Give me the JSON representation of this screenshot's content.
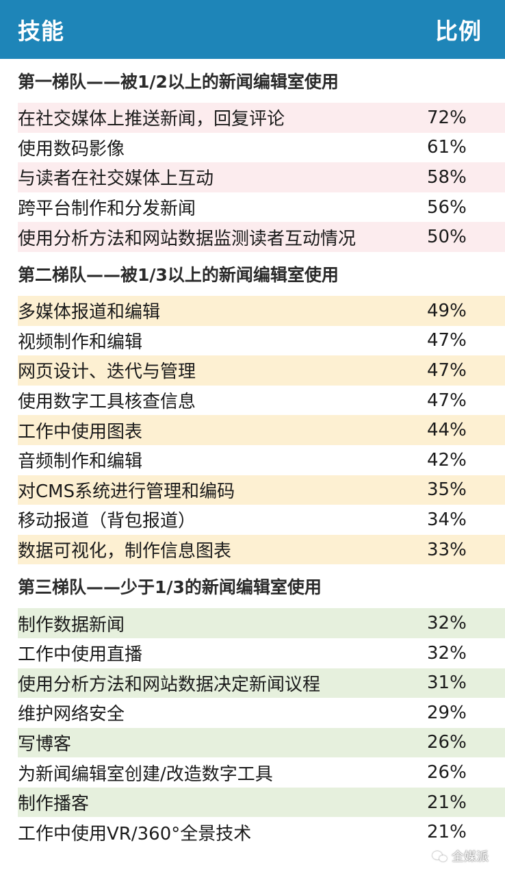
{
  "header": {
    "skill_label": "技能",
    "ratio_label": "比例"
  },
  "tiers": [
    {
      "title": "第一梯队——被1/2以上的新闻编辑室使用",
      "shade_color": "#fcecee",
      "rows": [
        {
          "skill": "在社交媒体上推送新闻，回复评论",
          "pct": "72%"
        },
        {
          "skill": "使用数码影像",
          "pct": "61%"
        },
        {
          "skill": "与读者在社交媒体上互动",
          "pct": "58%"
        },
        {
          "skill": "跨平台制作和分发新闻",
          "pct": "56%"
        },
        {
          "skill": "使用分析方法和网站数据监测读者互动情况",
          "pct": "50%"
        }
      ]
    },
    {
      "title": "第二梯队——被1/3以上的新闻编辑室使用",
      "shade_color": "#fdf0d2",
      "rows": [
        {
          "skill": "多媒体报道和编辑",
          "pct": "49%"
        },
        {
          "skill": "视频制作和编辑",
          "pct": "47%"
        },
        {
          "skill": "网页设计、迭代与管理",
          "pct": "47%"
        },
        {
          "skill": "使用数字工具核查信息",
          "pct": "47%"
        },
        {
          "skill": "工作中使用图表",
          "pct": "44%"
        },
        {
          "skill": "音频制作和编辑",
          "pct": "42%"
        },
        {
          "skill": "对CMS系统进行管理和编码",
          "pct": "35%"
        },
        {
          "skill": "移动报道（背包报道）",
          "pct": "34%"
        },
        {
          "skill": "数据可视化，制作信息图表",
          "pct": "33%"
        }
      ]
    },
    {
      "title": "第三梯队——少于1/3的新闻编辑室使用",
      "shade_color": "#e6f0dd",
      "rows": [
        {
          "skill": "制作数据新闻",
          "pct": "32%"
        },
        {
          "skill": "工作中使用直播",
          "pct": "32%"
        },
        {
          "skill": "使用分析方法和网站数据决定新闻议程",
          "pct": "31%"
        },
        {
          "skill": "维护网络安全",
          "pct": "29%"
        },
        {
          "skill": "写博客",
          "pct": "26%"
        },
        {
          "skill": "为新闻编辑室创建/改造数字工具",
          "pct": "26%"
        },
        {
          "skill": "制作播客",
          "pct": "21%"
        },
        {
          "skill": "工作中使用VR/360°全景技术",
          "pct": "21%"
        }
      ]
    }
  ],
  "watermark": {
    "text": "全媒派",
    "icon": "wechat-icon"
  }
}
